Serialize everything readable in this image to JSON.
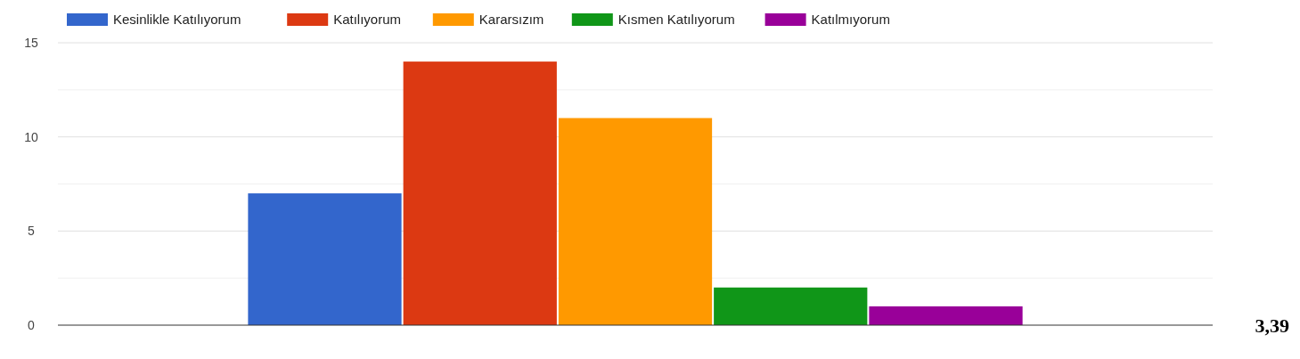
{
  "chart_data": {
    "type": "bar",
    "categories": [
      null
    ],
    "series": [
      {
        "name": "Kesinlikle Katılıyorum",
        "color": "#3366cc",
        "values": [
          7
        ]
      },
      {
        "name": "Katılıyorum",
        "color": "#dc3912",
        "values": [
          14
        ]
      },
      {
        "name": "Kararsızım",
        "color": "#ff9900",
        "values": [
          11
        ]
      },
      {
        "name": "Kısmen Katılıyorum",
        "color": "#109618",
        "values": [
          2
        ]
      },
      {
        "name": "Katılmıyorum",
        "color": "#990099",
        "values": [
          1
        ]
      }
    ],
    "ylim": [
      0,
      15
    ],
    "yticks": [
      0,
      {
        "value": 2.5,
        "label": null
      },
      5,
      {
        "value": 7.5,
        "label": null
      },
      10,
      {
        "value": 12.5,
        "label": null
      },
      15
    ],
    "grid": "y",
    "legend": "top",
    "annotations": [
      "3,39"
    ]
  }
}
